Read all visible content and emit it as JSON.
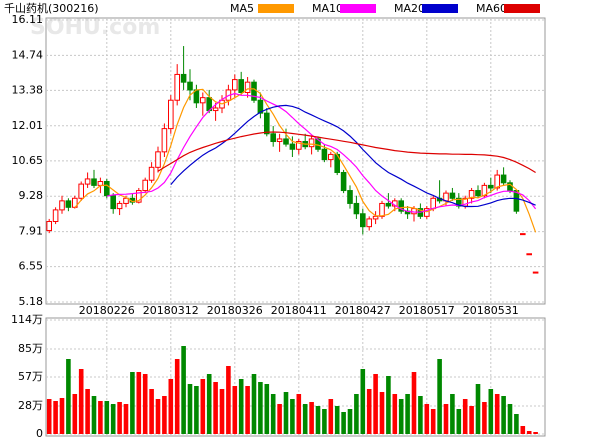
{
  "chart_data": {
    "type": "candlestick",
    "title": "千山药机(300216)",
    "watermark": "SOHU.com",
    "categories": [
      null,
      null,
      null,
      null,
      null,
      null,
      null,
      null,
      null,
      "20180226",
      null,
      null,
      null,
      null,
      null,
      null,
      null,
      null,
      null,
      "20180312",
      null,
      null,
      null,
      null,
      null,
      null,
      null,
      null,
      null,
      "20180326",
      null,
      null,
      null,
      null,
      null,
      null,
      null,
      null,
      null,
      "20180411",
      null,
      null,
      null,
      null,
      null,
      null,
      null,
      null,
      null,
      "20180427",
      null,
      null,
      null,
      null,
      null,
      null,
      null,
      null,
      null,
      "20180517",
      null,
      null,
      null,
      null,
      null,
      null,
      null,
      null,
      null,
      "20180531",
      null,
      null,
      null,
      null,
      null,
      null,
      null
    ],
    "open": [
      7.95,
      8.3,
      8.75,
      9.1,
      8.85,
      9.2,
      9.75,
      9.95,
      9.7,
      9.85,
      9.3,
      8.8,
      9.0,
      9.2,
      9.05,
      9.5,
      9.9,
      10.4,
      11.0,
      11.9,
      13.0,
      14.0,
      13.7,
      13.4,
      12.9,
      13.1,
      12.6,
      12.7,
      13.0,
      13.4,
      13.8,
      13.3,
      13.7,
      13.0,
      12.5,
      11.7,
      11.4,
      11.5,
      11.3,
      11.1,
      11.4,
      11.2,
      11.5,
      11.1,
      10.7,
      10.9,
      10.2,
      9.5,
      9.0,
      8.6,
      8.1,
      8.4,
      8.5,
      9.0,
      8.9,
      9.1,
      8.7,
      8.6,
      8.8,
      8.5,
      8.8,
      9.2,
      9.1,
      9.4,
      9.2,
      8.9,
      9.2,
      9.5,
      9.3,
      9.7,
      9.6,
      10.1,
      9.8,
      9.5,
      7.83,
      7.05,
      6.34
    ],
    "high": [
      8.4,
      8.85,
      9.3,
      9.2,
      9.3,
      9.85,
      10.2,
      10.3,
      10.0,
      9.95,
      9.4,
      9.1,
      9.3,
      9.4,
      9.6,
      10.0,
      10.6,
      11.2,
      12.1,
      13.2,
      14.4,
      15.1,
      14.2,
      13.6,
      13.3,
      13.4,
      12.9,
      13.2,
      13.6,
      14.0,
      14.1,
      13.9,
      13.8,
      13.3,
      12.7,
      12.0,
      11.7,
      11.9,
      11.6,
      11.5,
      11.7,
      11.6,
      11.6,
      11.3,
      11.0,
      11.0,
      10.3,
      9.7,
      9.3,
      8.8,
      8.5,
      8.7,
      9.1,
      9.4,
      9.2,
      9.2,
      8.9,
      8.9,
      9.0,
      8.9,
      9.3,
      9.9,
      9.5,
      9.6,
      9.4,
      9.3,
      9.6,
      9.7,
      9.8,
      10.0,
      10.3,
      10.4,
      9.9,
      9.5,
      7.83,
      7.05,
      6.34
    ],
    "low": [
      7.85,
      8.2,
      8.6,
      8.7,
      8.8,
      9.1,
      9.6,
      9.6,
      9.4,
      9.2,
      8.6,
      8.55,
      8.85,
      8.95,
      9.0,
      9.4,
      9.8,
      10.2,
      10.8,
      11.7,
      12.8,
      13.4,
      13.0,
      12.7,
      12.4,
      12.5,
      12.2,
      12.5,
      12.8,
      13.1,
      13.2,
      13.1,
      12.9,
      12.3,
      11.6,
      11.2,
      11.0,
      11.2,
      10.8,
      10.9,
      11.1,
      10.9,
      11.0,
      10.6,
      10.4,
      10.1,
      9.4,
      8.8,
      8.4,
      7.8,
      7.95,
      8.2,
      8.4,
      8.8,
      8.7,
      8.6,
      8.4,
      8.3,
      8.4,
      8.4,
      8.7,
      9.0,
      8.9,
      9.1,
      8.8,
      8.8,
      9.0,
      9.2,
      9.2,
      9.4,
      9.5,
      9.7,
      9.4,
      8.6,
      7.83,
      7.05,
      6.34
    ],
    "close": [
      8.3,
      8.75,
      9.1,
      8.85,
      9.2,
      9.75,
      9.95,
      9.7,
      9.85,
      9.3,
      8.8,
      9.0,
      9.2,
      9.05,
      9.5,
      9.9,
      10.4,
      11.0,
      11.9,
      13.0,
      14.0,
      13.7,
      13.4,
      12.9,
      13.1,
      12.6,
      12.7,
      13.0,
      13.4,
      13.8,
      13.3,
      13.7,
      13.0,
      12.5,
      11.7,
      11.4,
      11.5,
      11.3,
      11.1,
      11.4,
      11.2,
      11.5,
      11.1,
      10.7,
      10.9,
      10.2,
      9.5,
      9.0,
      8.6,
      8.1,
      8.4,
      8.5,
      9.0,
      8.9,
      9.1,
      8.7,
      8.6,
      8.8,
      8.5,
      8.8,
      9.2,
      9.1,
      9.4,
      9.2,
      8.9,
      9.2,
      9.5,
      9.3,
      9.7,
      9.6,
      10.1,
      9.8,
      9.5,
      8.7,
      7.83,
      7.05,
      6.34
    ],
    "volume": [
      35,
      33,
      36,
      75,
      40,
      65,
      45,
      38,
      33,
      33,
      30,
      32,
      30,
      62,
      62,
      60,
      45,
      35,
      38,
      55,
      75,
      88,
      50,
      48,
      55,
      60,
      52,
      45,
      68,
      48,
      55,
      48,
      60,
      52,
      50,
      40,
      30,
      42,
      35,
      40,
      30,
      32,
      28,
      25,
      35,
      28,
      22,
      25,
      40,
      65,
      45,
      60,
      42,
      58,
      40,
      35,
      40,
      62,
      38,
      30,
      25,
      75,
      30,
      40,
      25,
      35,
      28,
      50,
      32,
      45,
      40,
      38,
      30,
      20,
      8,
      3,
      2
    ],
    "up_color": "#ff0000",
    "down_color": "#008800",
    "series": [
      {
        "name": "MA5",
        "color": "#ff9900",
        "values": [
          null,
          null,
          null,
          null,
          8.84,
          9.13,
          9.37,
          9.49,
          9.69,
          9.71,
          9.52,
          9.33,
          9.23,
          9.07,
          9.11,
          9.33,
          9.61,
          9.97,
          10.54,
          11.24,
          12.06,
          12.72,
          13.2,
          13.4,
          13.42,
          13.14,
          12.94,
          12.86,
          12.96,
          13.1,
          13.24,
          13.44,
          13.44,
          13.26,
          12.84,
          12.46,
          12.02,
          11.68,
          11.4,
          11.34,
          11.3,
          11.3,
          11.26,
          11.18,
          11.08,
          10.88,
          10.48,
          10.06,
          9.64,
          9.08,
          8.72,
          8.52,
          8.52,
          8.58,
          8.78,
          8.84,
          8.86,
          8.82,
          8.74,
          8.68,
          8.78,
          8.88,
          9.0,
          9.14,
          9.16,
          9.16,
          9.24,
          9.22,
          9.32,
          9.46,
          9.64,
          9.7,
          9.74,
          9.54,
          9.19,
          8.58,
          7.88
        ]
      },
      {
        "name": "MA10",
        "color": "#ff00ff",
        "values": [
          null,
          null,
          null,
          null,
          null,
          null,
          null,
          null,
          null,
          9.28,
          9.33,
          9.35,
          9.36,
          9.38,
          9.41,
          9.43,
          9.47,
          9.6,
          9.81,
          10.18,
          10.7,
          11.17,
          11.59,
          11.97,
          12.33,
          12.6,
          12.83,
          13.03,
          13.18,
          13.26,
          13.19,
          13.19,
          13.15,
          13.11,
          12.97,
          12.85,
          12.73,
          12.56,
          12.33,
          12.09,
          11.88,
          11.66,
          11.47,
          11.29,
          11.21,
          11.09,
          10.89,
          10.66,
          10.41,
          10.08,
          9.8,
          9.5,
          9.29,
          9.11,
          8.93,
          8.78,
          8.69,
          8.67,
          8.66,
          8.73,
          8.81,
          8.87,
          8.91,
          8.94,
          8.92,
          8.97,
          9.06,
          9.11,
          9.23,
          9.31,
          9.4,
          9.47,
          9.48,
          9.43,
          9.33,
          9.11,
          8.79
        ]
      },
      {
        "name": "MA20",
        "color": "#0000cc",
        "values": [
          null,
          null,
          null,
          null,
          null,
          null,
          null,
          null,
          null,
          null,
          null,
          null,
          null,
          null,
          null,
          null,
          null,
          null,
          null,
          9.73,
          10.02,
          10.26,
          10.48,
          10.68,
          10.87,
          11.02,
          11.15,
          11.32,
          11.5,
          11.72,
          11.95,
          12.18,
          12.37,
          12.54,
          12.65,
          12.73,
          12.78,
          12.8,
          12.76,
          12.68,
          12.54,
          12.43,
          12.31,
          12.2,
          12.09,
          11.97,
          11.81,
          11.61,
          11.37,
          11.09,
          10.84,
          10.58,
          10.38,
          10.2,
          10.07,
          9.94,
          9.79,
          9.67,
          9.54,
          9.41,
          9.31,
          9.19,
          9.1,
          9.03,
          8.93,
          8.88,
          8.88,
          8.89,
          8.95,
          9.02,
          9.11,
          9.17,
          9.2,
          9.19,
          9.13,
          9.04,
          8.93
        ]
      },
      {
        "name": "MA60",
        "color": "#dd0000",
        "values": [
          null,
          null,
          null,
          null,
          null,
          null,
          null,
          null,
          null,
          null,
          null,
          null,
          null,
          null,
          null,
          null,
          null,
          10.25,
          10.4,
          10.55,
          10.7,
          10.85,
          10.98,
          11.08,
          11.17,
          11.25,
          11.33,
          11.4,
          11.47,
          11.53,
          11.59,
          11.64,
          11.69,
          11.73,
          11.76,
          11.77,
          11.76,
          11.74,
          11.71,
          11.68,
          11.65,
          11.61,
          11.57,
          11.53,
          11.49,
          11.45,
          11.41,
          11.37,
          11.32,
          11.27,
          11.22,
          11.17,
          11.13,
          11.09,
          11.05,
          11.02,
          10.99,
          10.97,
          10.95,
          10.94,
          10.93,
          10.92,
          10.92,
          10.91,
          10.91,
          10.9,
          10.9,
          10.89,
          10.88,
          10.86,
          10.83,
          10.78,
          10.7,
          10.6,
          10.48,
          10.35,
          10.2
        ]
      }
    ],
    "ylim": [
      5.18,
      16.11
    ],
    "yticks": [
      5.18,
      6.55,
      7.91,
      9.28,
      10.65,
      12.01,
      13.38,
      14.74,
      16.11
    ],
    "volume_ylim": [
      0,
      114
    ],
    "volume_yticks": [
      0,
      {
        "value": 28,
        "label": "28万"
      },
      {
        "value": 57,
        "label": "57万"
      },
      {
        "value": 85,
        "label": "85万"
      },
      {
        "value": 114,
        "label": "114万"
      }
    ],
    "grid": true
  }
}
